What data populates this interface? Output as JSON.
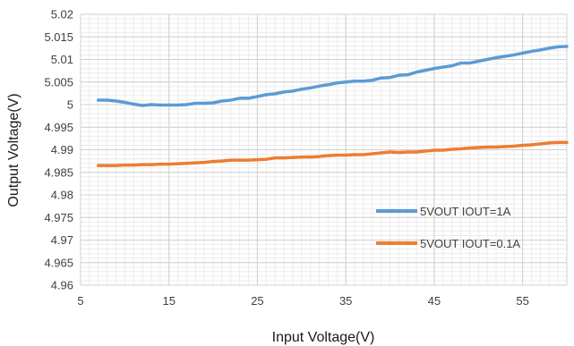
{
  "chart_data": {
    "type": "line",
    "xlabel": "Input  Voltage(V)",
    "ylabel": "Output  Voltage(V)",
    "xlim": [
      5,
      60
    ],
    "ylim": [
      4.96,
      5.02
    ],
    "x_major_ticks": [
      "5",
      "15",
      "25",
      "35",
      "45",
      "55"
    ],
    "x_major_values": [
      5,
      15,
      25,
      35,
      45,
      55
    ],
    "x_minor_step": 1,
    "y_ticks": [
      "4.96",
      "4.965",
      "4.97",
      "4.975",
      "4.98",
      "4.985",
      "4.99",
      "4.995",
      "5",
      "5.005",
      "5.01",
      "5.015",
      "5.02"
    ],
    "y_tick_values": [
      4.96,
      4.965,
      4.97,
      4.975,
      4.98,
      4.985,
      4.99,
      4.995,
      5.0,
      5.005,
      5.01,
      5.015,
      5.02
    ],
    "y_minor_step": 0.001,
    "grid": true,
    "legend_position": "bottom-right",
    "series": [
      {
        "name": "5VOUT IOUT=1A",
        "color": "#5b9bd5",
        "x": [
          7,
          8,
          9,
          10,
          11,
          12,
          13,
          14,
          15,
          16,
          17,
          18,
          19,
          20,
          21,
          22,
          23,
          24,
          25,
          26,
          27,
          28,
          29,
          30,
          31,
          32,
          33,
          34,
          35,
          36,
          37,
          38,
          39,
          40,
          41,
          42,
          43,
          44,
          45,
          46,
          47,
          48,
          49,
          50,
          51,
          52,
          53,
          54,
          55,
          56,
          57,
          58,
          59,
          60
        ],
        "y": [
          5.001,
          5.001,
          5.0008,
          5.0005,
          5.0001,
          4.9998,
          5.0,
          4.9999,
          4.9999,
          4.9999,
          5.0,
          5.0003,
          5.0003,
          5.0004,
          5.0008,
          5.001,
          5.0014,
          5.0014,
          5.0018,
          5.0022,
          5.0024,
          5.0028,
          5.003,
          5.0034,
          5.0037,
          5.0041,
          5.0044,
          5.0048,
          5.005,
          5.0052,
          5.0052,
          5.0054,
          5.0059,
          5.006,
          5.0065,
          5.0066,
          5.0072,
          5.0076,
          5.008,
          5.0083,
          5.0086,
          5.0092,
          5.0092,
          5.0096,
          5.01,
          5.0104,
          5.0107,
          5.011,
          5.0114,
          5.0118,
          5.0121,
          5.0125,
          5.0128,
          5.0129
        ]
      },
      {
        "name": "5VOUT IOUT=0.1A",
        "color": "#ed7d31",
        "x": [
          7,
          8,
          9,
          10,
          11,
          12,
          13,
          14,
          15,
          16,
          17,
          18,
          19,
          20,
          21,
          22,
          23,
          24,
          25,
          26,
          27,
          28,
          29,
          30,
          31,
          32,
          33,
          34,
          35,
          36,
          37,
          38,
          39,
          40,
          41,
          42,
          43,
          44,
          45,
          46,
          47,
          48,
          49,
          50,
          51,
          52,
          53,
          54,
          55,
          56,
          57,
          58,
          59,
          60
        ],
        "y": [
          4.9865,
          4.9865,
          4.9865,
          4.9866,
          4.9866,
          4.9867,
          4.9867,
          4.9868,
          4.9868,
          4.9869,
          4.987,
          4.9871,
          4.9872,
          4.9874,
          4.9875,
          4.9877,
          4.9877,
          4.9877,
          4.9878,
          4.9879,
          4.9882,
          4.9882,
          4.9883,
          4.9884,
          4.9884,
          4.9885,
          4.9887,
          4.9888,
          4.9888,
          4.9889,
          4.9889,
          4.9891,
          4.9893,
          4.9895,
          4.9894,
          4.9895,
          4.9895,
          4.9897,
          4.9899,
          4.9899,
          4.9901,
          4.9902,
          4.9904,
          4.9905,
          4.9906,
          4.9906,
          4.9907,
          4.9908,
          4.991,
          4.9911,
          4.9913,
          4.9915,
          4.9916,
          4.9916
        ]
      }
    ]
  }
}
